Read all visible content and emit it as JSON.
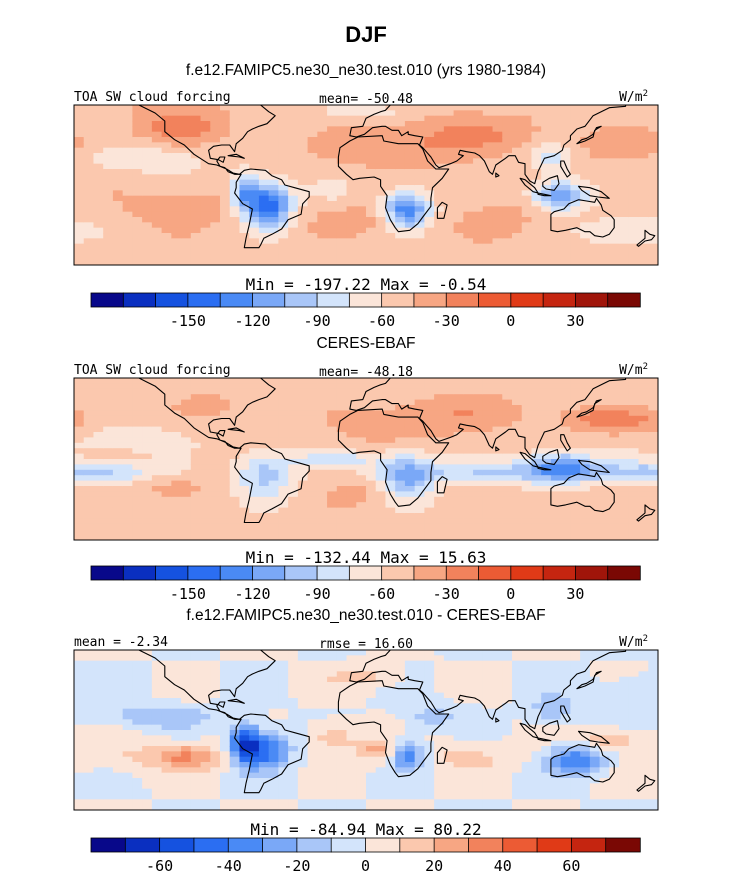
{
  "figure": {
    "title": "DJF",
    "colors": {
      "ocean_base": "#fde3d6",
      "land_line": "#000000",
      "frame": "#000000"
    }
  },
  "chart_data": [
    {
      "type": "heatmap",
      "title": "f.e12.FAMIPC5.ne30_ne30.test.010 (yrs 1980-1984)",
      "left_label": "TOA SW cloud forcing",
      "center_label": "mean= -50.48",
      "units": "W/m",
      "units_sup": "2",
      "min_max": "Min = -197.22 Max =  -0.54",
      "colorbar": {
        "levels": [
          -180,
          -165,
          -150,
          -135,
          -120,
          -105,
          -90,
          -75,
          -60,
          -45,
          -30,
          -15,
          0,
          15,
          30,
          45,
          60
        ],
        "ticks": [
          "-150",
          "-120",
          "-90",
          "-60",
          "-30",
          "0",
          "30"
        ],
        "colors": [
          "#08088a",
          "#0a2fc0",
          "#1552e0",
          "#2b6ef2",
          "#4a8af5",
          "#7aa8f7",
          "#a9c6f8",
          "#d3e4fb",
          "#fbe5d9",
          "#fbc8ae",
          "#f7a683",
          "#f2825c",
          "#ec5b34",
          "#e03a17",
          "#c52510",
          "#a0150a",
          "#7a0804"
        ]
      }
    },
    {
      "type": "heatmap",
      "title": "CERES-EBAF",
      "left_label": "TOA SW cloud forcing",
      "center_label": "mean= -48.18",
      "units": "W/m",
      "units_sup": "2",
      "min_max": "Min = -132.44 Max =  15.63",
      "colorbar": {
        "levels": [
          -180,
          -165,
          -150,
          -135,
          -120,
          -105,
          -90,
          -75,
          -60,
          -45,
          -30,
          -15,
          0,
          15,
          30,
          45,
          60
        ],
        "ticks": [
          "-150",
          "-120",
          "-90",
          "-60",
          "-30",
          "0",
          "30"
        ],
        "colors": [
          "#08088a",
          "#0a2fc0",
          "#1552e0",
          "#2b6ef2",
          "#4a8af5",
          "#7aa8f7",
          "#a9c6f8",
          "#d3e4fb",
          "#fbe5d9",
          "#fbc8ae",
          "#f7a683",
          "#f2825c",
          "#ec5b34",
          "#e03a17",
          "#c52510",
          "#a0150a",
          "#7a0804"
        ]
      }
    },
    {
      "type": "heatmap",
      "title": "f.e12.FAMIPC5.ne30_ne30.test.010 - CERES-EBAF",
      "left_label": "mean = -2.34",
      "center_label": "rmse =  16.60",
      "units": "W/m",
      "units_sup": "2",
      "min_max": "Min = -84.94 Max =  80.22",
      "colorbar": {
        "levels": [
          -70,
          -60,
          -50,
          -40,
          -30,
          -20,
          -10,
          0,
          10,
          20,
          30,
          40,
          50,
          60,
          70
        ],
        "ticks": [
          "-60",
          "-40",
          "-20",
          "0",
          "20",
          "40",
          "60"
        ],
        "colors": [
          "#08088a",
          "#0a2fc0",
          "#1552e0",
          "#2b6ef2",
          "#4a8af5",
          "#7aa8f7",
          "#a9c6f8",
          "#d3e4fb",
          "#fbe5d9",
          "#fbc8ae",
          "#f7a683",
          "#f2825c",
          "#ec5b34",
          "#e03a17",
          "#c52510",
          "#7a0804"
        ]
      }
    }
  ]
}
